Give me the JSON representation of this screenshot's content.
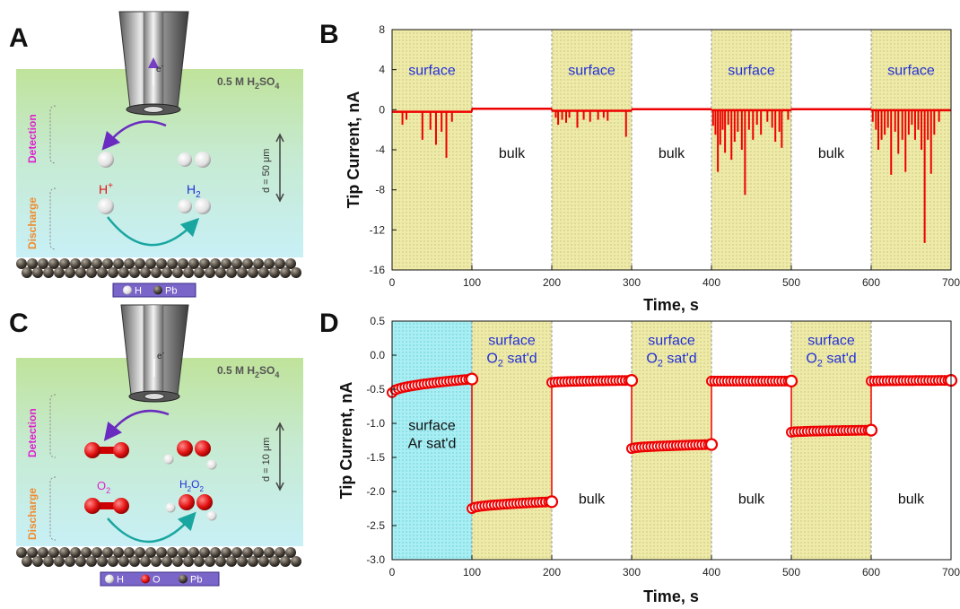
{
  "panels": {
    "A": {
      "letter": "A",
      "solution_label": "0.5 M H",
      "solution_sub": "2",
      "solution_tail": "SO",
      "solution_sub2": "4",
      "electron": "e",
      "electron_sup": "-",
      "detection": "Detection",
      "discharge": "Discharge",
      "distance": "d = 50 μm",
      "species_left": "H",
      "species_left_sup": "+",
      "species_right": "H",
      "species_right_sub": "2",
      "legend": [
        "H",
        "Pb"
      ]
    },
    "C": {
      "letter": "C",
      "solution_label": "0.5 M H",
      "solution_sub": "2",
      "solution_tail": "SO",
      "solution_sub2": "4",
      "electron": "e",
      "electron_sup": "-",
      "detection": "Detection",
      "discharge": "Discharge",
      "distance": "d = 10 μm",
      "species_left": "O",
      "species_left_sub": "2",
      "species_right": "H",
      "species_right_sub": "2",
      "species_right_tail": "O",
      "species_right_sub2": "2",
      "legend": [
        "H",
        "O",
        "Pb"
      ]
    }
  },
  "colors": {
    "trace_red": "#ee0000",
    "shade_yellow": "#eeeaa8",
    "shade_cyan": "#a8eef3",
    "label_blue": "#2130d8",
    "detection_magenta": "#dd22cc",
    "discharge_orange": "#f08a30",
    "arrow_purple": "#6a2cc0",
    "arrow_teal": "#1aa6a0"
  },
  "chart_data": [
    {
      "panel": "B",
      "letter": "B",
      "type": "line",
      "xlabel": "Time, s",
      "ylabel": "Tip Current, nA",
      "xlim": [
        0,
        700
      ],
      "ylim": [
        -16,
        8
      ],
      "xticks": [
        0,
        100,
        200,
        300,
        400,
        500,
        600,
        700
      ],
      "yticks": [
        8,
        4,
        0,
        -4,
        -8,
        -12,
        -16
      ],
      "shaded_regions": [
        {
          "from": 0,
          "to": 100,
          "label": "surface"
        },
        {
          "from": 200,
          "to": 300,
          "label": "surface"
        },
        {
          "from": 400,
          "to": 500,
          "label": "surface"
        },
        {
          "from": 600,
          "to": 700,
          "label": "surface"
        }
      ],
      "bulk_regions": [
        {
          "from": 100,
          "to": 200,
          "label": "bulk"
        },
        {
          "from": 300,
          "to": 400,
          "label": "bulk"
        },
        {
          "from": 500,
          "to": 600,
          "label": "bulk"
        }
      ],
      "baseline": [
        {
          "from": 0,
          "to": 100,
          "y": -0.2
        },
        {
          "from": 100,
          "to": 200,
          "y": 0.1
        },
        {
          "from": 200,
          "to": 300,
          "y": -0.1
        },
        {
          "from": 300,
          "to": 400,
          "y": 0.05
        },
        {
          "from": 400,
          "to": 500,
          "y": -0.05
        },
        {
          "from": 500,
          "to": 600,
          "y": 0.05
        },
        {
          "from": 600,
          "to": 700,
          "y": -0.05
        }
      ],
      "spikes": [
        {
          "x": 13,
          "y": -1.5
        },
        {
          "x": 18,
          "y": -1.0
        },
        {
          "x": 38,
          "y": -3.0
        },
        {
          "x": 48,
          "y": -2.0
        },
        {
          "x": 55,
          "y": -3.5
        },
        {
          "x": 62,
          "y": -2.2
        },
        {
          "x": 68,
          "y": -4.8
        },
        {
          "x": 75,
          "y": -1.2
        },
        {
          "x": 205,
          "y": -0.8
        },
        {
          "x": 208,
          "y": -1.5
        },
        {
          "x": 213,
          "y": -1.0
        },
        {
          "x": 218,
          "y": -1.3
        },
        {
          "x": 222,
          "y": -0.8
        },
        {
          "x": 232,
          "y": -1.8
        },
        {
          "x": 240,
          "y": -1.0
        },
        {
          "x": 248,
          "y": -1.2
        },
        {
          "x": 258,
          "y": -1.0
        },
        {
          "x": 265,
          "y": -0.8
        },
        {
          "x": 270,
          "y": -1.1
        },
        {
          "x": 293,
          "y": -2.7
        },
        {
          "x": 402,
          "y": -1.6
        },
        {
          "x": 405,
          "y": -2.5
        },
        {
          "x": 408,
          "y": -6.2
        },
        {
          "x": 411,
          "y": -3.5
        },
        {
          "x": 414,
          "y": -2.0
        },
        {
          "x": 417,
          "y": -4.3
        },
        {
          "x": 421,
          "y": -1.5
        },
        {
          "x": 425,
          "y": -5.0
        },
        {
          "x": 429,
          "y": -3.2
        },
        {
          "x": 433,
          "y": -2.2
        },
        {
          "x": 438,
          "y": -4.0
        },
        {
          "x": 442,
          "y": -8.5
        },
        {
          "x": 447,
          "y": -2.0
        },
        {
          "x": 452,
          "y": -3.0
        },
        {
          "x": 457,
          "y": -1.5
        },
        {
          "x": 462,
          "y": -2.5
        },
        {
          "x": 470,
          "y": -1.2
        },
        {
          "x": 476,
          "y": -1.8
        },
        {
          "x": 480,
          "y": -3.2
        },
        {
          "x": 485,
          "y": -2.2
        },
        {
          "x": 488,
          "y": -3.8
        },
        {
          "x": 496,
          "y": -1.0
        },
        {
          "x": 602,
          "y": -1.2
        },
        {
          "x": 606,
          "y": -2.0
        },
        {
          "x": 609,
          "y": -4.0
        },
        {
          "x": 613,
          "y": -3.0
        },
        {
          "x": 617,
          "y": -2.5
        },
        {
          "x": 621,
          "y": -1.8
        },
        {
          "x": 625,
          "y": -6.5
        },
        {
          "x": 630,
          "y": -2.2
        },
        {
          "x": 634,
          "y": -4.4
        },
        {
          "x": 639,
          "y": -3.0
        },
        {
          "x": 643,
          "y": -6.2
        },
        {
          "x": 647,
          "y": -2.5
        },
        {
          "x": 651,
          "y": -1.5
        },
        {
          "x": 655,
          "y": -3.0
        },
        {
          "x": 659,
          "y": -2.0
        },
        {
          "x": 663,
          "y": -4.0
        },
        {
          "x": 667,
          "y": -13.3
        },
        {
          "x": 671,
          "y": -3.0
        },
        {
          "x": 675,
          "y": -6.4
        },
        {
          "x": 679,
          "y": -2.5
        },
        {
          "x": 685,
          "y": -1.2
        }
      ]
    },
    {
      "panel": "D",
      "letter": "D",
      "type": "scatter",
      "xlabel": "Time, s",
      "ylabel": "Tip Current, nA",
      "xlim": [
        0,
        700
      ],
      "ylim": [
        -3.0,
        0.5
      ],
      "xticks": [
        0,
        100,
        200,
        300,
        400,
        500,
        600,
        700
      ],
      "yticks": [
        "0.5",
        "0.0",
        "-0.5",
        "-1.0",
        "-1.5",
        "-2.0",
        "-2.5",
        "-3.0"
      ],
      "shaded_regions": [
        {
          "from": 0,
          "to": 100,
          "style": "cyan",
          "label_lines": [
            "surface",
            "Ar sat'd"
          ],
          "label_color": "black"
        },
        {
          "from": 100,
          "to": 200,
          "style": "yellow",
          "label_lines": [
            "surface",
            "O2 sat'd"
          ],
          "label_color": "blue"
        },
        {
          "from": 300,
          "to": 400,
          "style": "yellow",
          "label_lines": [
            "surface",
            "O2 sat'd"
          ],
          "label_color": "blue"
        },
        {
          "from": 500,
          "to": 600,
          "style": "yellow",
          "label_lines": [
            "surface",
            "O2 sat'd"
          ],
          "label_color": "blue"
        }
      ],
      "bulk_regions": [
        {
          "from": 200,
          "to": 300,
          "label": "bulk"
        },
        {
          "from": 400,
          "to": 500,
          "label": "bulk"
        },
        {
          "from": 600,
          "to": 700,
          "label": "bulk"
        }
      ],
      "segments": [
        {
          "from": 0,
          "to": 100,
          "y_start": -0.55,
          "y_end": -0.35
        },
        {
          "from": 100,
          "to": 200,
          "y_start": -2.25,
          "y_end": -2.15
        },
        {
          "from": 200,
          "to": 300,
          "y_start": -0.4,
          "y_end": -0.37
        },
        {
          "from": 300,
          "to": 400,
          "y_start": -1.37,
          "y_end": -1.31
        },
        {
          "from": 400,
          "to": 500,
          "y_start": -0.38,
          "y_end": -0.38
        },
        {
          "from": 500,
          "to": 600,
          "y_start": -1.13,
          "y_end": -1.1
        },
        {
          "from": 600,
          "to": 700,
          "y_start": -0.38,
          "y_end": -0.37
        }
      ]
    }
  ]
}
